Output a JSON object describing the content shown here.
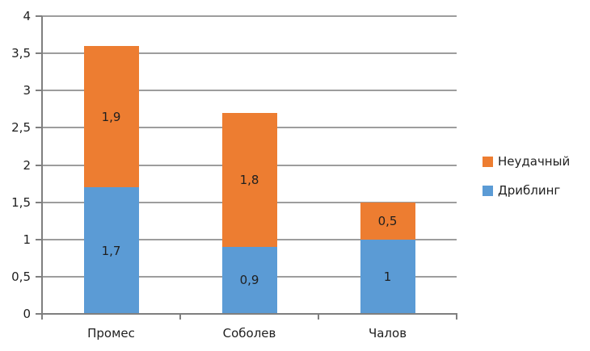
{
  "chart_data": {
    "type": "bar",
    "stacked": true,
    "title": "",
    "categories": [
      "Промес",
      "Соболев",
      "Чалов"
    ],
    "series": [
      {
        "name": "Дриблинг",
        "color": "#5B9BD5",
        "values": [
          1.7,
          0.9,
          1
        ],
        "value_labels": [
          "1,7",
          "0,9",
          "1"
        ]
      },
      {
        "name": "Неудачный",
        "color": "#ED7D31",
        "values": [
          1.9,
          1.8,
          0.5
        ],
        "value_labels": [
          "1,9",
          "1,8",
          "0,5"
        ]
      }
    ],
    "totals": [
      3.6,
      2.7,
      1.5
    ],
    "ylim": [
      0,
      4
    ],
    "y_ticks": [
      "0",
      "0,5",
      "1",
      "1,5",
      "2",
      "2,5",
      "3",
      "3,5",
      "4"
    ],
    "xlabel": "",
    "ylabel": "",
    "grid": true,
    "legend_position": "right",
    "legend": [
      {
        "label": "Неудачный",
        "color": "#ED7D31"
      },
      {
        "label": "Дриблинг",
        "color": "#5B9BD5"
      }
    ],
    "colors": {
      "gridline": "#9d9d9d",
      "axis": "#7f7f7f",
      "text": "#1f1f1f",
      "background": "#ffffff"
    }
  }
}
